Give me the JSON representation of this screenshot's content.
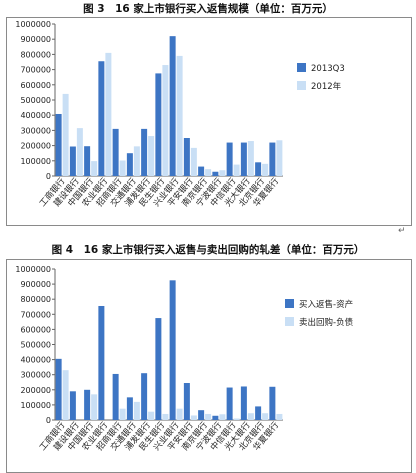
{
  "figure1": {
    "title": "图 3　16 家上市银行买入返售规模（单位：百万元）"
  },
  "figure2": {
    "title": "图 4　16 家上市银行买入返售与卖出回购的轧差（单位：百万元）"
  },
  "colors": {
    "series_a": "#3d75c4",
    "series_b": "#c9dff5",
    "axis": "#666666"
  },
  "cursor_mark": "↵",
  "chart_data": [
    {
      "type": "bar",
      "categories": [
        "工商银行",
        "建设银行",
        "中国银行",
        "农业银行",
        "招商银行",
        "交通银行",
        "浦发银行",
        "民生银行",
        "兴业银行",
        "平安银行",
        "南京银行",
        "宁波银行",
        "中信银行",
        "光大银行",
        "北京银行",
        "华夏银行"
      ],
      "series": [
        {
          "name": "2013Q3",
          "values": [
            408000,
            194000,
            196000,
            755000,
            310000,
            150000,
            310000,
            675000,
            920000,
            250000,
            62000,
            28000,
            220000,
            220000,
            90000,
            220000
          ]
        },
        {
          "name": "2012年",
          "values": [
            540000,
            315000,
            98000,
            810000,
            102000,
            195000,
            263000,
            730000,
            790000,
            185000,
            45000,
            38000,
            75000,
            230000,
            80000,
            235000
          ]
        }
      ],
      "yticks": [
        "0",
        "100000",
        "200000",
        "300000",
        "400000",
        "500000",
        "600000",
        "700000",
        "800000",
        "900000",
        "1000000"
      ],
      "ylim": [
        0,
        1000000
      ],
      "legend": "right"
    },
    {
      "type": "bar",
      "categories": [
        "工商银行",
        "建设银行",
        "中国银行",
        "农业银行",
        "招商银行",
        "交通银行",
        "浦发银行",
        "民生银行",
        "兴业银行",
        "平安银行",
        "南京银行",
        "宁波银行",
        "中信银行",
        "光大银行",
        "北京银行",
        "华夏银行"
      ],
      "series": [
        {
          "name": "买入返售-资产",
          "values": [
            405000,
            190000,
            200000,
            755000,
            305000,
            150000,
            310000,
            675000,
            925000,
            245000,
            65000,
            28000,
            215000,
            222000,
            90000,
            220000
          ]
        },
        {
          "name": "卖出回购-负债",
          "values": [
            330000,
            0,
            170000,
            0,
            75000,
            120000,
            55000,
            40000,
            75000,
            30000,
            40000,
            38000,
            10000,
            45000,
            45000,
            40000
          ]
        }
      ],
      "yticks": [
        "0",
        "100000",
        "200000",
        "300000",
        "400000",
        "500000",
        "600000",
        "700000",
        "800000",
        "900000",
        "1000000"
      ],
      "ylim": [
        0,
        1000000
      ],
      "legend": "right"
    }
  ]
}
